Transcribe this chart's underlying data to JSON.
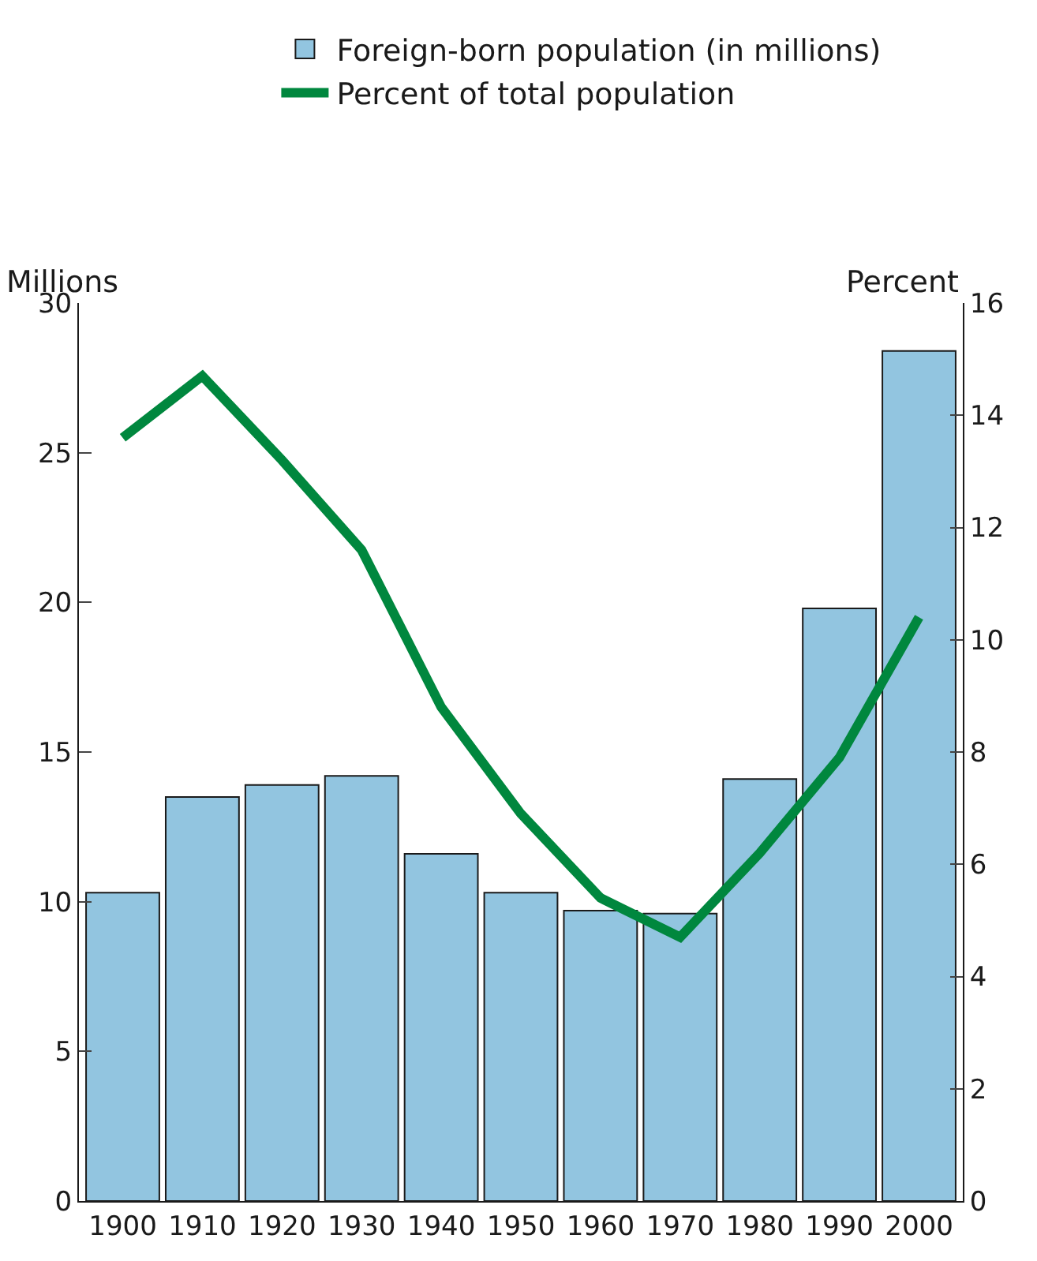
{
  "chart_data": {
    "type": "bar",
    "ylabel": "Millions",
    "y2label": "Percent",
    "categories": [
      "1900",
      "1910",
      "1920",
      "1930",
      "1940",
      "1950",
      "1960",
      "1970",
      "1980",
      "1990",
      "2000"
    ],
    "series": [
      {
        "name": "Foreign-born population (in millions)",
        "color": "#92c5e0",
        "values": [
          10.3,
          13.5,
          13.9,
          14.2,
          11.6,
          10.3,
          9.7,
          9.6,
          14.1,
          19.8,
          28.4
        ]
      },
      {
        "name": "Percent of total population",
        "type": "line",
        "axis": "y2",
        "color": "#00873e",
        "values": [
          13.6,
          14.7,
          13.2,
          11.6,
          8.8,
          6.9,
          5.4,
          4.7,
          6.2,
          7.9,
          10.4
        ]
      }
    ],
    "ylim": [
      0,
      30
    ],
    "yticks": [
      0,
      5,
      10,
      15,
      20,
      25,
      30
    ],
    "y2lim": [
      0,
      16
    ],
    "y2ticks": [
      0,
      2,
      4,
      6,
      8,
      10,
      12,
      14,
      16
    ],
    "legend": "top",
    "marker": "none",
    "line_style": "solid"
  }
}
